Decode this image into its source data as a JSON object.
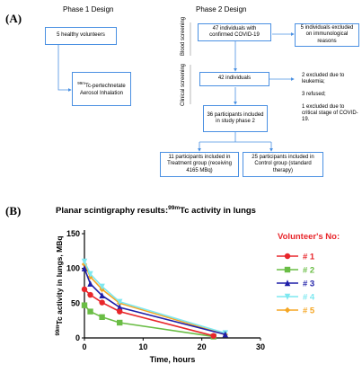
{
  "panel_a": {
    "label": "(A)",
    "phase1": {
      "title": "Phase 1 Design",
      "volunteers": "5 healthy volunteers",
      "inhalation_sup": "99m",
      "inhalation": "Tc-pertechnetate Aerosol Inhalation"
    },
    "phase2": {
      "title": "Phase 2 Design",
      "screening_blood": "Blood screening",
      "screening_clinical": "Clinical screening",
      "confirmed": "47 individuals with confirmed COVID-19",
      "excluded_immuno": "5 individuals excluded on immunological reasons",
      "individuals_42": "42 individuals",
      "excluded_leukemia": "2 excluded due to leukemia;",
      "refused": "3 refused;",
      "excluded_critical": "1 excluded due to critical stage of COVID-19.",
      "included_36": "36 participants included in study phase 2",
      "treatment": "11 participants included in Treatment group (receiving 4165 MBq)",
      "control": "25 participants included in Control group (standard therapy)"
    }
  },
  "panel_b": {
    "label": "(B)",
    "title_pre": "Planar scintigraphy results:",
    "title_sup": "99m",
    "title_post": "Tc activity in lungs",
    "legend_title": "Volunteer's No:"
  },
  "chart_data": {
    "type": "line",
    "title": "Planar scintigraphy results: 99mTc activity in lungs",
    "xlabel": "Time, hours",
    "ylabel_sup": "99m",
    "ylabel": "Tc activity in lungs, MBq",
    "xlim": [
      0,
      30
    ],
    "ylim": [
      0,
      150
    ],
    "xticks": [
      0,
      10,
      20,
      30
    ],
    "yticks": [
      0,
      50,
      100,
      150
    ],
    "legend_position": "right",
    "series": [
      {
        "name": "# 1",
        "color": "#e8262b",
        "marker": "circle",
        "x": [
          0,
          1,
          3,
          6,
          22
        ],
        "y": [
          70,
          62,
          51,
          38,
          3
        ]
      },
      {
        "name": "# 2",
        "color": "#6abd45",
        "marker": "square",
        "x": [
          0,
          1,
          3,
          6,
          22
        ],
        "y": [
          47,
          38,
          30,
          22,
          2
        ]
      },
      {
        "name": "# 3",
        "color": "#1f1fa8",
        "marker": "triangle",
        "x": [
          0,
          1,
          3,
          6,
          24
        ],
        "y": [
          100,
          78,
          61,
          44,
          5
        ]
      },
      {
        "name": "# 4",
        "color": "#7ee8f0",
        "marker": "triangle-down",
        "x": [
          0,
          1,
          3,
          6,
          24
        ],
        "y": [
          110,
          92,
          74,
          52,
          7
        ]
      },
      {
        "name": "# 5",
        "color": "#f5a623",
        "marker": "diamond",
        "x": [
          0,
          1,
          3,
          6,
          24
        ],
        "y": [
          106,
          88,
          70,
          50,
          5
        ]
      }
    ]
  }
}
